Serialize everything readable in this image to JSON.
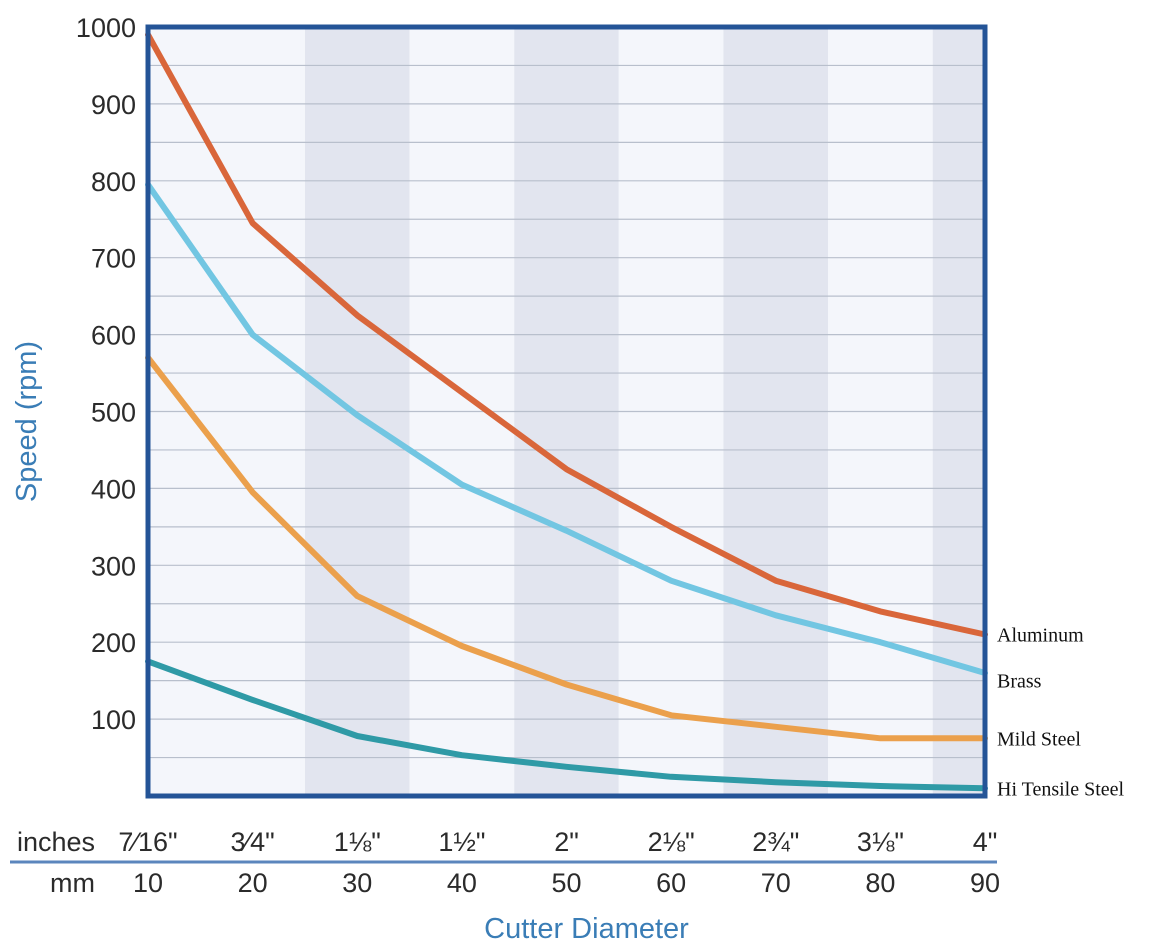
{
  "chart_data": {
    "type": "line",
    "ylabel": "Speed (rpm)",
    "xlabel": "Cutter Diameter",
    "ylim": [
      0,
      1000
    ],
    "yticks": [
      100,
      200,
      300,
      400,
      500,
      600,
      700,
      800,
      900,
      1000
    ],
    "x_rows": [
      {
        "label": "inches",
        "ticks": [
          "7⁄16\"",
          "3⁄4\"",
          "1⅛\"",
          "1½\"",
          "2\"",
          "2⅛\"",
          "2¾\"",
          "3⅛\"",
          "4\""
        ]
      },
      {
        "label": "mm",
        "ticks": [
          "10",
          "20",
          "30",
          "40",
          "50",
          "60",
          "70",
          "80",
          "90"
        ]
      }
    ],
    "x": [
      10,
      20,
      30,
      40,
      50,
      60,
      70,
      80,
      90
    ],
    "xlim": [
      10,
      90
    ],
    "grid": true,
    "series": [
      {
        "name": "Aluminum",
        "color": "#d9663a",
        "values": [
          990,
          745,
          625,
          525,
          425,
          350,
          280,
          240,
          210
        ]
      },
      {
        "name": "Brass",
        "color": "#72c6e2",
        "values": [
          795,
          600,
          495,
          405,
          345,
          280,
          235,
          200,
          160
        ]
      },
      {
        "name": "Mild Steel",
        "color": "#eba04c",
        "values": [
          570,
          395,
          260,
          195,
          145,
          105,
          90,
          75,
          75
        ]
      },
      {
        "name": "Hi Tensile Steel",
        "color": "#2f9aa6",
        "values": [
          175,
          125,
          78,
          53,
          38,
          25,
          18,
          13,
          10
        ]
      }
    ]
  }
}
